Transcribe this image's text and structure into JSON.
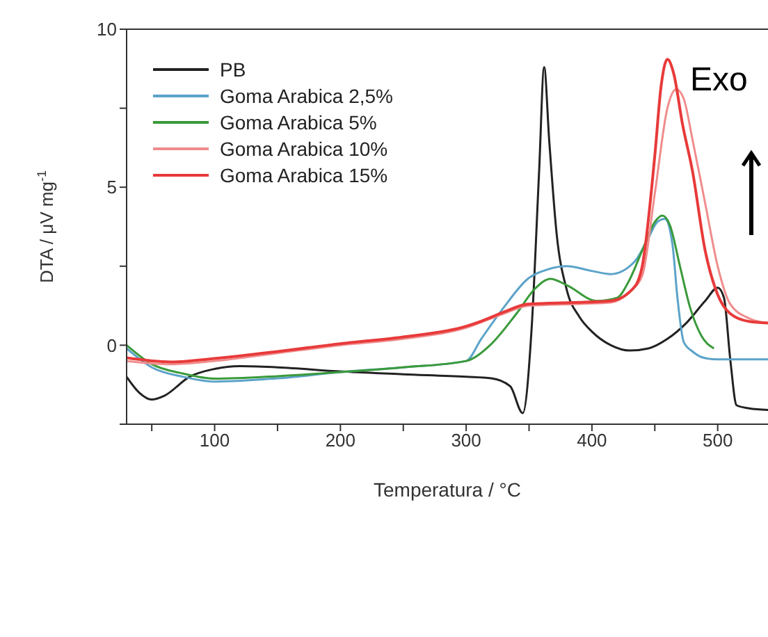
{
  "chart_data": {
    "type": "line",
    "xlabel": "Temperatura / °C",
    "ylabel": "DTA / μV mg$^{-1}$",
    "xlim": [
      30,
      540
    ],
    "ylim": [
      -2.5,
      10
    ],
    "xticks": [
      {
        "value": 50,
        "label": null
      },
      100,
      {
        "value": 150,
        "label": null
      },
      200,
      {
        "value": 250,
        "label": null
      },
      300,
      {
        "value": 350,
        "label": null
      },
      400,
      {
        "value": 450,
        "label": null
      },
      500
    ],
    "yticks": [
      {
        "value": -2.5,
        "label": null
      },
      0,
      {
        "value": 2.5,
        "label": null
      },
      5,
      {
        "value": 7.5,
        "label": null
      },
      10
    ],
    "legend": "top left",
    "marker": "none",
    "line_style": "solid",
    "annotations": [
      "Exo"
    ],
    "series": [
      {
        "name": "PB",
        "color": "#222222",
        "x": [
          30,
          40,
          50,
          60,
          80,
          100,
          120,
          150,
          200,
          250,
          300,
          320,
          335,
          345,
          352,
          358,
          362,
          366,
          372,
          380,
          390,
          400,
          415,
          430,
          445,
          460,
          475,
          490,
          500,
          505,
          510,
          515,
          525,
          540
        ],
        "values": [
          -1.0,
          -1.5,
          -1.72,
          -1.6,
          -1.0,
          -0.75,
          -0.66,
          -0.7,
          -0.83,
          -0.92,
          -1.0,
          -1.05,
          -1.3,
          -2.15,
          0.5,
          5.5,
          8.8,
          6.5,
          3.5,
          1.75,
          0.9,
          0.43,
          0.0,
          -0.17,
          -0.1,
          0.2,
          0.7,
          1.4,
          1.82,
          1.5,
          -0.45,
          -1.9,
          -2.0,
          -2.05
        ]
      },
      {
        "name": "Goma Arabica 2,5%",
        "color": "#5ba3c9",
        "x": [
          30,
          50,
          75,
          100,
          150,
          200,
          250,
          300,
          312,
          330,
          349,
          365,
          380,
          400,
          415,
          434,
          445,
          452,
          458,
          464,
          468,
          473,
          480,
          489,
          500,
          520,
          540
        ],
        "values": [
          -0.1,
          -0.7,
          -1.0,
          -1.15,
          -1.05,
          -0.85,
          -0.7,
          -0.5,
          0.2,
          1.2,
          2.1,
          2.4,
          2.5,
          2.35,
          2.25,
          2.65,
          3.4,
          3.9,
          4.0,
          3.2,
          1.5,
          0.1,
          -0.2,
          -0.4,
          -0.45,
          -0.45,
          -0.45
        ]
      },
      {
        "name": "Goma Arabica 5%",
        "color": "#3a9a3a",
        "x": [
          30,
          50,
          75,
          100,
          150,
          200,
          250,
          300,
          319,
          340,
          355,
          367,
          380,
          404,
          420,
          429,
          440,
          450,
          456,
          462,
          470,
          478,
          487,
          497
        ],
        "values": [
          0.0,
          -0.6,
          -0.9,
          -1.06,
          -0.98,
          -0.85,
          -0.7,
          -0.5,
          0.0,
          1.0,
          1.8,
          2.1,
          1.9,
          1.4,
          1.5,
          2.0,
          3.0,
          3.9,
          4.1,
          3.8,
          2.5,
          1.2,
          0.3,
          -0.1
        ]
      },
      {
        "name": "Goma Arabica 10%",
        "color": "#f08c8c",
        "x": [
          30,
          65,
          100,
          150,
          200,
          250,
          300,
          330,
          350,
          385,
          415,
          430,
          440,
          450,
          460,
          467,
          473,
          480,
          490,
          500,
          510,
          525,
          540
        ],
        "values": [
          -0.5,
          -0.6,
          -0.5,
          -0.25,
          0.0,
          0.2,
          0.55,
          1.0,
          1.25,
          1.3,
          1.35,
          1.7,
          2.2,
          4.8,
          7.5,
          8.1,
          7.8,
          6.5,
          4.5,
          2.5,
          1.3,
          0.85,
          0.7
        ]
      },
      {
        "name": "Goma Arabica 15%",
        "color": "#e83a3a",
        "x": [
          30,
          65,
          100,
          150,
          200,
          250,
          300,
          312,
          330,
          349,
          385,
          415,
          434,
          440,
          450,
          455,
          460,
          465,
          472,
          480,
          490,
          500,
          510,
          525,
          540
        ],
        "values": [
          -0.4,
          -0.53,
          -0.42,
          -0.2,
          0.05,
          0.26,
          0.6,
          0.76,
          1.05,
          1.3,
          1.35,
          1.4,
          1.85,
          2.5,
          6.0,
          8.2,
          9.05,
          8.6,
          7.0,
          5.5,
          3.0,
          1.6,
          1.0,
          0.75,
          0.7
        ]
      }
    ]
  }
}
